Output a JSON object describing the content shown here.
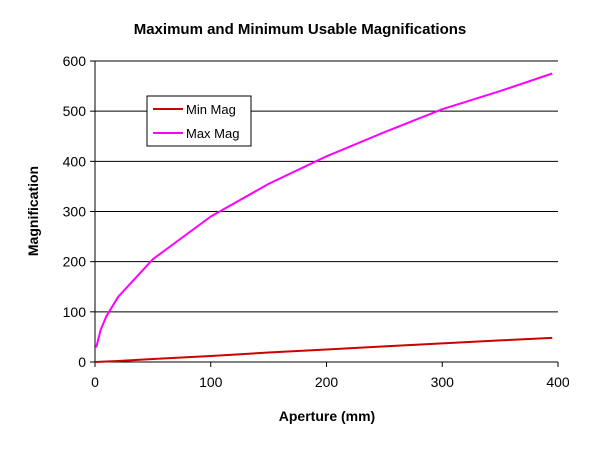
{
  "chart_data": {
    "type": "line",
    "title": "Maximum and Minimum Usable Magnifications",
    "xlabel": "Aperture (mm)",
    "ylabel": "Magnification",
    "xlim": [
      0,
      400
    ],
    "ylim": [
      0,
      600
    ],
    "x_ticks": [
      "0",
      "100",
      "200",
      "300",
      "400"
    ],
    "y_ticks": [
      "0",
      "100",
      "200",
      "300",
      "400",
      "500",
      "600"
    ],
    "grid": "horizontal",
    "legend_placement": "upper-left",
    "series": [
      {
        "name": "Min Mag",
        "color": "#cc0000",
        "x": [
          0,
          10,
          20,
          50,
          100,
          150,
          200,
          250,
          300,
          350,
          395
        ],
        "y": [
          0,
          1,
          2,
          6,
          12,
          19,
          25,
          31,
          37,
          43,
          48
        ]
      },
      {
        "name": "Max Mag",
        "color": "#ff00ff",
        "x": [
          1,
          5,
          10,
          20,
          50,
          100,
          150,
          200,
          250,
          300,
          350,
          395
        ],
        "y": [
          29,
          65,
          92,
          130,
          205,
          290,
          355,
          410,
          458,
          504,
          540,
          575
        ]
      }
    ]
  }
}
